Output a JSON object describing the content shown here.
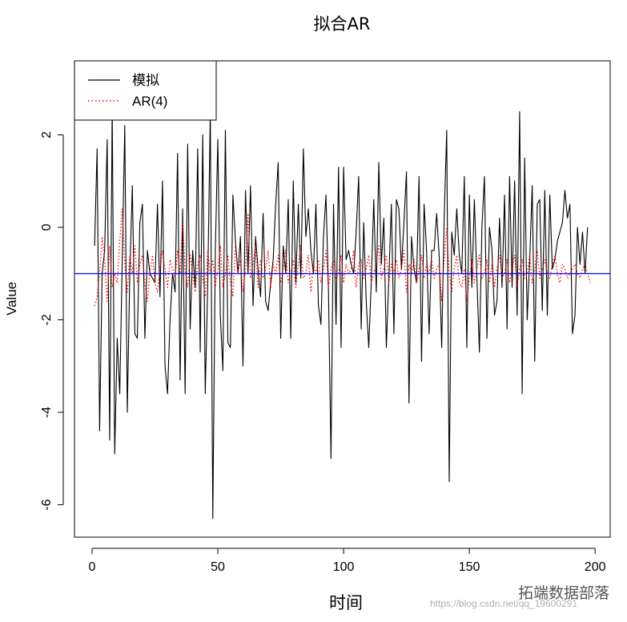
{
  "chart_data": {
    "type": "line",
    "title": "拟合AR",
    "xlabel": "时间",
    "ylabel": "Value",
    "xlim": [
      -7,
      206
    ],
    "ylim": [
      -6.7,
      3.6
    ],
    "x_ticks": [
      0,
      50,
      100,
      150,
      200
    ],
    "y_ticks": [
      -6,
      -4,
      -2,
      0,
      2
    ],
    "grid": false,
    "legend_position": "top-left",
    "series": [
      {
        "name": "模拟",
        "color": "#000000",
        "dash": "solid",
        "x_start": 1,
        "values": [
          -0.4,
          1.7,
          -4.4,
          -1.0,
          -0.5,
          1.9,
          -4.6,
          2.6,
          -4.9,
          -2.4,
          -3.6,
          -0.7,
          2.2,
          -4.0,
          -1.0,
          0.9,
          -2.3,
          -2.4,
          0.1,
          0.5,
          -2.4,
          -0.5,
          -1.0,
          -1.1,
          -1.2,
          0.5,
          -1.5,
          1.0,
          -3.0,
          -3.6,
          -2.0,
          -1.0,
          -1.4,
          1.6,
          -3.3,
          0.4,
          -3.6,
          1.8,
          -2.2,
          -0.5,
          -1.3,
          1.7,
          -2.7,
          2.0,
          -3.6,
          -1.2,
          2.5,
          -6.3,
          -0.5,
          1.9,
          -1.9,
          -3.1,
          2.1,
          -2.5,
          -2.6,
          0.7,
          -0.3,
          -1.0,
          -0.2,
          -3.0,
          0.8,
          -1.0,
          0.9,
          -1.7,
          -0.2,
          -0.9,
          -1.5,
          0.3,
          -1.6,
          -1.8,
          -1.2,
          -0.7,
          0.5,
          1.4,
          -2.4,
          -0.4,
          -1.0,
          0.6,
          -2.4,
          1.0,
          -1.2,
          0.5,
          -1.1,
          1.7,
          -0.2,
          0.4,
          -0.5,
          -1.0,
          0.5,
          -1.7,
          -2.1,
          -0.2,
          0.7,
          -1.4,
          -5.0,
          0.5,
          -2.1,
          1.3,
          -2.6,
          1.3,
          -0.7,
          -0.5,
          -0.8,
          -1.0,
          -0.1,
          1.1,
          -2.2,
          0.1,
          -1.6,
          -2.6,
          -1.2,
          0.6,
          -1.4,
          1.4,
          -0.8,
          0.2,
          -2.6,
          -1.1,
          0.5,
          -2.3,
          0.6,
          0.4,
          -0.9,
          0.1,
          1.2,
          -3.8,
          -0.2,
          -0.9,
          -1.2,
          1.1,
          -2.9,
          0.5,
          -0.5,
          -2.3,
          -0.5,
          -0.5,
          0.3,
          -0.6,
          -2.6,
          0.2,
          2.1,
          -5.5,
          -0.1,
          -0.6,
          0.4,
          -0.6,
          -1.0,
          1.1,
          -2.6,
          0.7,
          -1.3,
          0.6,
          -1.1,
          -2.7,
          0.0,
          1.1,
          -2.4,
          0.0,
          -0.5,
          -1.9,
          -1.6,
          0.2,
          -1.3,
          0.7,
          -2.2,
          1.1,
          -1.3,
          1.0,
          -1.9,
          2.5,
          -3.6,
          1.5,
          -2.0,
          -0.7,
          0.9,
          -2.9,
          0.5,
          0.6,
          -1.8,
          0.8,
          -1.9,
          0.7,
          -0.9,
          -0.7,
          -0.3,
          -0.1,
          0.1,
          0.8,
          0.2,
          0.5,
          -2.3,
          -1.9,
          0.0,
          -0.8,
          -0.1,
          -1.0,
          0.0
        ],
        "style": "solid"
      },
      {
        "name": "AR(4)",
        "color": "#ff0000",
        "dash": "dotted",
        "x_start": 1,
        "values": [
          -1.7,
          -1.5,
          -1.0,
          -0.2,
          -0.7,
          -1.6,
          -0.4,
          -1.3,
          -1.0,
          -1.2,
          -0.3,
          0.4,
          -0.8,
          -1.4,
          -0.6,
          -1.0,
          -0.4,
          -1.2,
          -0.8,
          -0.6,
          -1.2,
          -1.6,
          -1.0,
          -0.6,
          -1.2,
          -1.4,
          -0.9,
          -0.5,
          -0.9,
          -1.3,
          -0.7,
          -0.9,
          -1.1,
          -0.5,
          -1.0,
          0.1,
          -0.9,
          -1.3,
          -0.6,
          -1.0,
          -1.4,
          -0.8,
          -0.6,
          -1.1,
          -1.5,
          -0.5,
          -1.0,
          -0.7,
          -1.3,
          -0.9,
          -0.4,
          -1.3,
          -1.0,
          -0.6,
          -1.2,
          -1.5,
          -0.4,
          -1.0,
          -0.7,
          -1.4,
          -0.9,
          0.3,
          -1.1,
          -0.8,
          -0.4,
          -1.3,
          -0.7,
          -1.1,
          -0.9,
          -0.5,
          -1.3,
          -0.8,
          -1.0,
          -0.6,
          -1.2,
          -0.9,
          -0.5,
          -1.2,
          -1.0,
          -0.7,
          -1.3,
          -0.8,
          -0.4,
          -1.1,
          -1.0,
          -0.6,
          -1.4,
          -0.8,
          -1.0,
          -0.7,
          -1.2,
          -0.9,
          -0.5,
          -1.3,
          -0.9,
          -0.7,
          -1.1,
          -1.0,
          -0.6,
          -1.2,
          -0.8,
          -1.0,
          -0.9,
          -0.5,
          -1.3,
          -0.8,
          -0.7,
          -1.1,
          -0.9,
          -0.6,
          -1.2,
          -1.0,
          -0.8,
          -0.4,
          -1.1,
          -0.9,
          -0.6,
          -1.2,
          -0.8,
          -1.0,
          -0.7,
          -1.1,
          -0.9,
          -0.5,
          -1.4,
          -0.8,
          -1.0,
          -0.7,
          -1.2,
          -0.9,
          -0.6,
          -1.1,
          -0.8,
          -1.0,
          -0.7,
          -1.1,
          -0.9,
          -0.8,
          -1.6,
          -0.7,
          0.0,
          -1.0,
          -1.4,
          -0.9,
          -0.6,
          -1.2,
          -1.3,
          -0.9,
          -1.6,
          -1.1,
          -0.7,
          -1.2,
          -0.9,
          -0.6,
          -1.1,
          -1.0,
          -0.7,
          -1.2,
          -0.8,
          -1.3,
          -0.9,
          -0.6,
          -1.1,
          -1.0,
          -0.7,
          -1.2,
          -0.9,
          -0.6,
          -1.3,
          -0.9,
          -0.7,
          -1.1,
          -1.0,
          -0.6,
          -1.2,
          -0.9,
          -0.5,
          -1.1,
          -0.9,
          -0.7,
          -1.0,
          -1.1,
          -0.8,
          -0.6,
          -1.0,
          -1.2,
          -0.8,
          -0.9,
          -1.1,
          -1.0,
          -0.9,
          -0.8,
          -1.0,
          -1.1,
          -0.9,
          -0.8,
          -1.0,
          -1.2
        ],
        "style": "dotted"
      }
    ],
    "hline": {
      "y": -1.0,
      "color": "#0000ff"
    }
  },
  "watermark": {
    "brand": "拓端数据部落",
    "url": "https://blog.csdn.net/qq_19600291"
  }
}
